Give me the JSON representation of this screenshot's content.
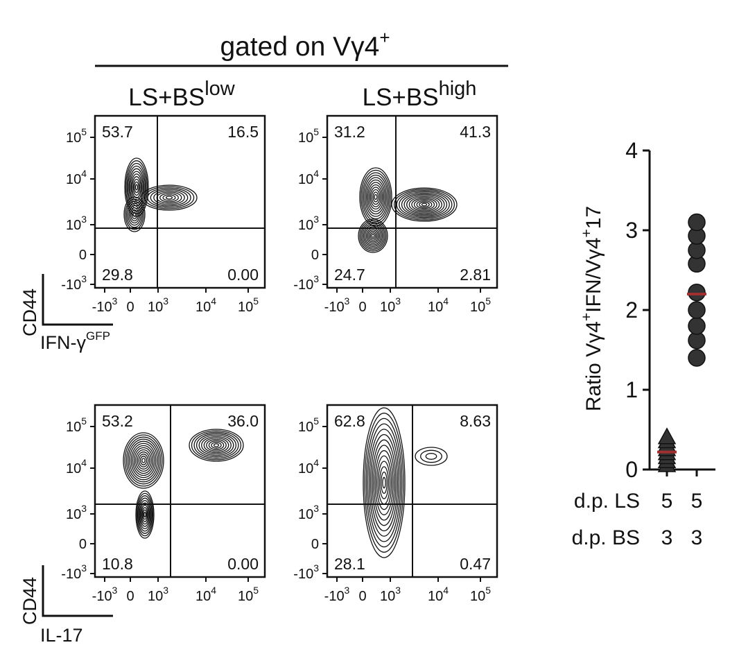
{
  "header": {
    "text": "gated on Vγ4",
    "sup": "+"
  },
  "columns": [
    {
      "base": "LS+BS",
      "sup": "low"
    },
    {
      "base": "LS+BS",
      "sup": "high"
    }
  ],
  "flow_axis": {
    "y_ticks": [
      {
        "base": "10",
        "exp": "5"
      },
      {
        "base": "10",
        "exp": "4"
      },
      {
        "base": "10",
        "exp": "3"
      },
      {
        "base": "0",
        "exp": ""
      },
      {
        "base": "-10",
        "exp": "3"
      }
    ],
    "x_ticks": [
      {
        "base": "-10",
        "exp": "3"
      },
      {
        "base": "0",
        "exp": ""
      },
      {
        "base": "10",
        "exp": "3"
      },
      {
        "base": "10",
        "exp": "4"
      },
      {
        "base": "10",
        "exp": "5"
      }
    ]
  },
  "rows": [
    {
      "ylabel": "CD44",
      "xlabel": "IFN-γ",
      "xlabel_sup": "GFP"
    },
    {
      "ylabel": "CD44",
      "xlabel": "IL-17",
      "xlabel_sup": ""
    }
  ],
  "chart_data": [
    {
      "type": "contour",
      "panel": "LS+BS low, CD44 vs IFN-γ GFP",
      "quadrants": {
        "upper_left": "53.7",
        "upper_right": "16.5",
        "lower_left": "29.8",
        "lower_right": "0.00"
      }
    },
    {
      "type": "contour",
      "panel": "LS+BS high, CD44 vs IFN-γ GFP",
      "quadrants": {
        "upper_left": "31.2",
        "upper_right": "41.3",
        "lower_left": "24.7",
        "lower_right": "2.81"
      }
    },
    {
      "type": "contour",
      "panel": "LS+BS low, CD44 vs IL-17",
      "quadrants": {
        "upper_left": "53.2",
        "upper_right": "36.0",
        "lower_left": "10.8",
        "lower_right": "0.00"
      }
    },
    {
      "type": "contour",
      "panel": "LS+BS high, CD44 vs IL-17",
      "quadrants": {
        "upper_left": "62.8",
        "upper_right": "8.63",
        "lower_left": "28.1",
        "lower_right": "0.47"
      }
    },
    {
      "type": "scatter",
      "ylabel": {
        "t1": "Ratio Vγ4",
        "s1": "+",
        "t2": "IFN/Vγ4",
        "s2": "+",
        "t3": "17"
      },
      "ylim": [
        0,
        4
      ],
      "yticks": [
        0,
        1,
        2,
        3,
        4
      ],
      "row_labels": [
        "d.p. LS",
        "d.p. BS"
      ],
      "series": [
        {
          "marker": "triangle",
          "color": "#333333",
          "category_labels": [
            "5",
            "3"
          ],
          "values": [
            0.05,
            0.1,
            0.15,
            0.2,
            0.25,
            0.3,
            0.35,
            0.4
          ],
          "mean": 0.22
        },
        {
          "marker": "circle",
          "color": "#333333",
          "category_labels": [
            "5",
            "3"
          ],
          "values": [
            1.4,
            1.62,
            1.8,
            2.0,
            2.22,
            2.58,
            2.75,
            2.93,
            3.1
          ],
          "mean": 2.2
        }
      ],
      "mean_color": "#a03030"
    }
  ]
}
